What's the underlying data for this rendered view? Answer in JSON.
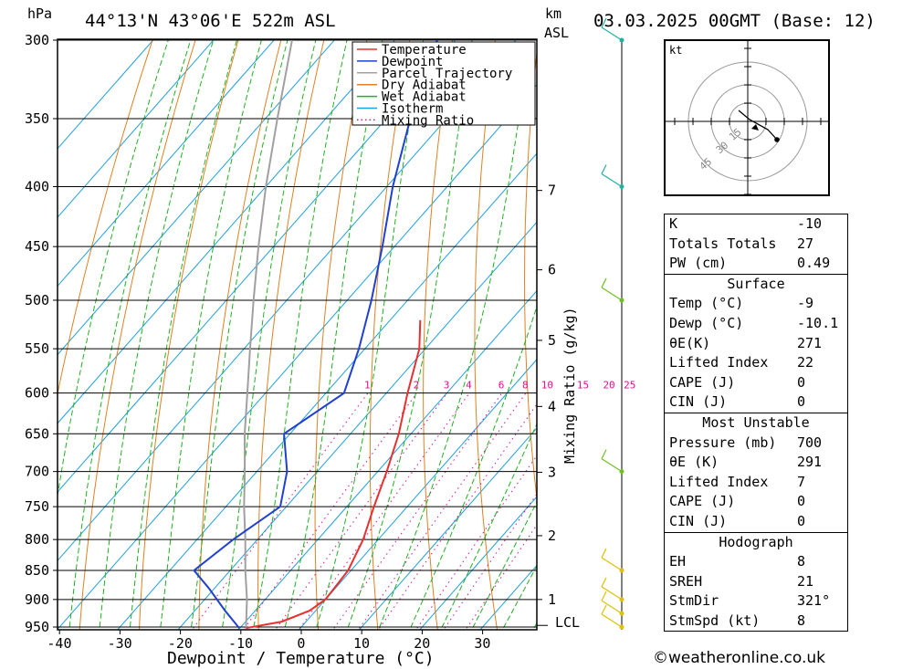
{
  "header": {
    "pressure_unit": "hPa",
    "height_unit": "km",
    "height_ref": "ASL",
    "location": "44°13'N  43°06'E  522m  ASL",
    "datetime": "03.03.2025  00GMT  (Base: 12)"
  },
  "credit": "©weatheronline.co.uk",
  "chart_data": {
    "type": "line",
    "title": "",
    "xlabel": "Dewpoint / Temperature (°C)",
    "ylabel": "hPa",
    "secondary_ylabel": "Mixing Ratio (g/kg)",
    "x_ticks": [
      "-40",
      "-30",
      "-20",
      "-10",
      "0",
      "10",
      "20",
      "30"
    ],
    "y_ticks": [
      300,
      350,
      400,
      450,
      500,
      550,
      600,
      650,
      700,
      750,
      800,
      850,
      900,
      950
    ],
    "xlim": [
      -40,
      38
    ],
    "ylim": [
      300,
      960
    ],
    "y_scale": "log (pressure)",
    "km_labels": [
      {
        "text": "7",
        "p": 403
      },
      {
        "text": "6",
        "p": 471
      },
      {
        "text": "5",
        "p": 541
      },
      {
        "text": "4",
        "p": 616
      },
      {
        "text": "3",
        "p": 701
      },
      {
        "text": "2",
        "p": 794
      },
      {
        "text": "1",
        "p": 900
      }
    ],
    "lcl_label": "LCL",
    "lcl_p": 947,
    "mixing_ratio_labels": [
      "1",
      "2",
      "3",
      "4",
      "6",
      "8",
      "10",
      "15",
      "20",
      "25"
    ],
    "legend_position": "top-right",
    "series": [
      {
        "name": "Temperature",
        "color": "#e83030",
        "points": [
          [
            952,
            -9
          ],
          [
            940,
            -4
          ],
          [
            920,
            -1
          ],
          [
            900,
            0
          ],
          [
            850,
            -0.5
          ],
          [
            800,
            -2.5
          ],
          [
            750,
            -5.5
          ],
          [
            700,
            -8.5
          ],
          [
            650,
            -12
          ],
          [
            600,
            -16.5
          ],
          [
            550,
            -21
          ],
          [
            520,
            -25
          ]
        ]
      },
      {
        "name": "Dewpoint",
        "color": "#2040d0",
        "points": [
          [
            952,
            -10.1
          ],
          [
            920,
            -15
          ],
          [
            880,
            -21
          ],
          [
            850,
            -26
          ],
          [
            800,
            -24
          ],
          [
            750,
            -21
          ],
          [
            700,
            -25
          ],
          [
            650,
            -31
          ],
          [
            600,
            -27
          ],
          [
            550,
            -31
          ],
          [
            500,
            -36
          ],
          [
            450,
            -42
          ],
          [
            400,
            -49
          ],
          [
            350,
            -56
          ],
          [
            300,
            -63
          ]
        ]
      },
      {
        "name": "Parcel Trajectory",
        "color": "#a0a0a0",
        "points": [
          [
            952,
            -9
          ],
          [
            900,
            -13
          ],
          [
            850,
            -17.5
          ],
          [
            800,
            -22
          ],
          [
            750,
            -27
          ],
          [
            700,
            -32
          ],
          [
            650,
            -37.5
          ],
          [
            600,
            -43
          ],
          [
            550,
            -49
          ],
          [
            500,
            -55.5
          ],
          [
            450,
            -62.5
          ],
          [
            400,
            -70
          ],
          [
            350,
            -78
          ],
          [
            300,
            -87
          ]
        ]
      },
      {
        "name": "Dry Adiabat",
        "color": "#e08020",
        "points": []
      },
      {
        "name": "Wet Adiabat",
        "color": "#20b020",
        "points": []
      },
      {
        "name": "Isotherm",
        "color": "#20a0e0",
        "points": []
      },
      {
        "name": "Mixing Ratio",
        "color": "#e01090",
        "points": []
      }
    ],
    "wind_levels_hpa": [
      300,
      400,
      500,
      700,
      850,
      900,
      925,
      950
    ]
  },
  "hodograph": {
    "unit": "kt",
    "ring_labels": [
      "15",
      "30",
      "45"
    ]
  },
  "indices": {
    "top": [
      {
        "k": "K",
        "v": "-10"
      },
      {
        "k": "Totals Totals",
        "v": "27"
      },
      {
        "k": "PW (cm)",
        "v": "0.49"
      }
    ],
    "surface": {
      "title": "Surface",
      "rows": [
        {
          "k": "Temp (°C)",
          "v": "-9"
        },
        {
          "k": "Dewp (°C)",
          "v": "-10.1"
        },
        {
          "k": "θE(K)",
          "v": "271"
        },
        {
          "k": "Lifted Index",
          "v": "22"
        },
        {
          "k": "CAPE (J)",
          "v": "0"
        },
        {
          "k": "CIN (J)",
          "v": "0"
        }
      ]
    },
    "most_unstable": {
      "title": "Most Unstable",
      "rows": [
        {
          "k": "Pressure (mb)",
          "v": "700"
        },
        {
          "k": "θE (K)",
          "v": "291"
        },
        {
          "k": "Lifted Index",
          "v": "7"
        },
        {
          "k": "CAPE (J)",
          "v": "0"
        },
        {
          "k": "CIN (J)",
          "v": "0"
        }
      ]
    },
    "hodograph": {
      "title": "Hodograph",
      "rows": [
        {
          "k": "EH",
          "v": "8"
        },
        {
          "k": "SREH",
          "v": "21"
        },
        {
          "k": "StmDir",
          "v": "321°"
        },
        {
          "k": "StmSpd (kt)",
          "v": "8"
        }
      ]
    }
  }
}
